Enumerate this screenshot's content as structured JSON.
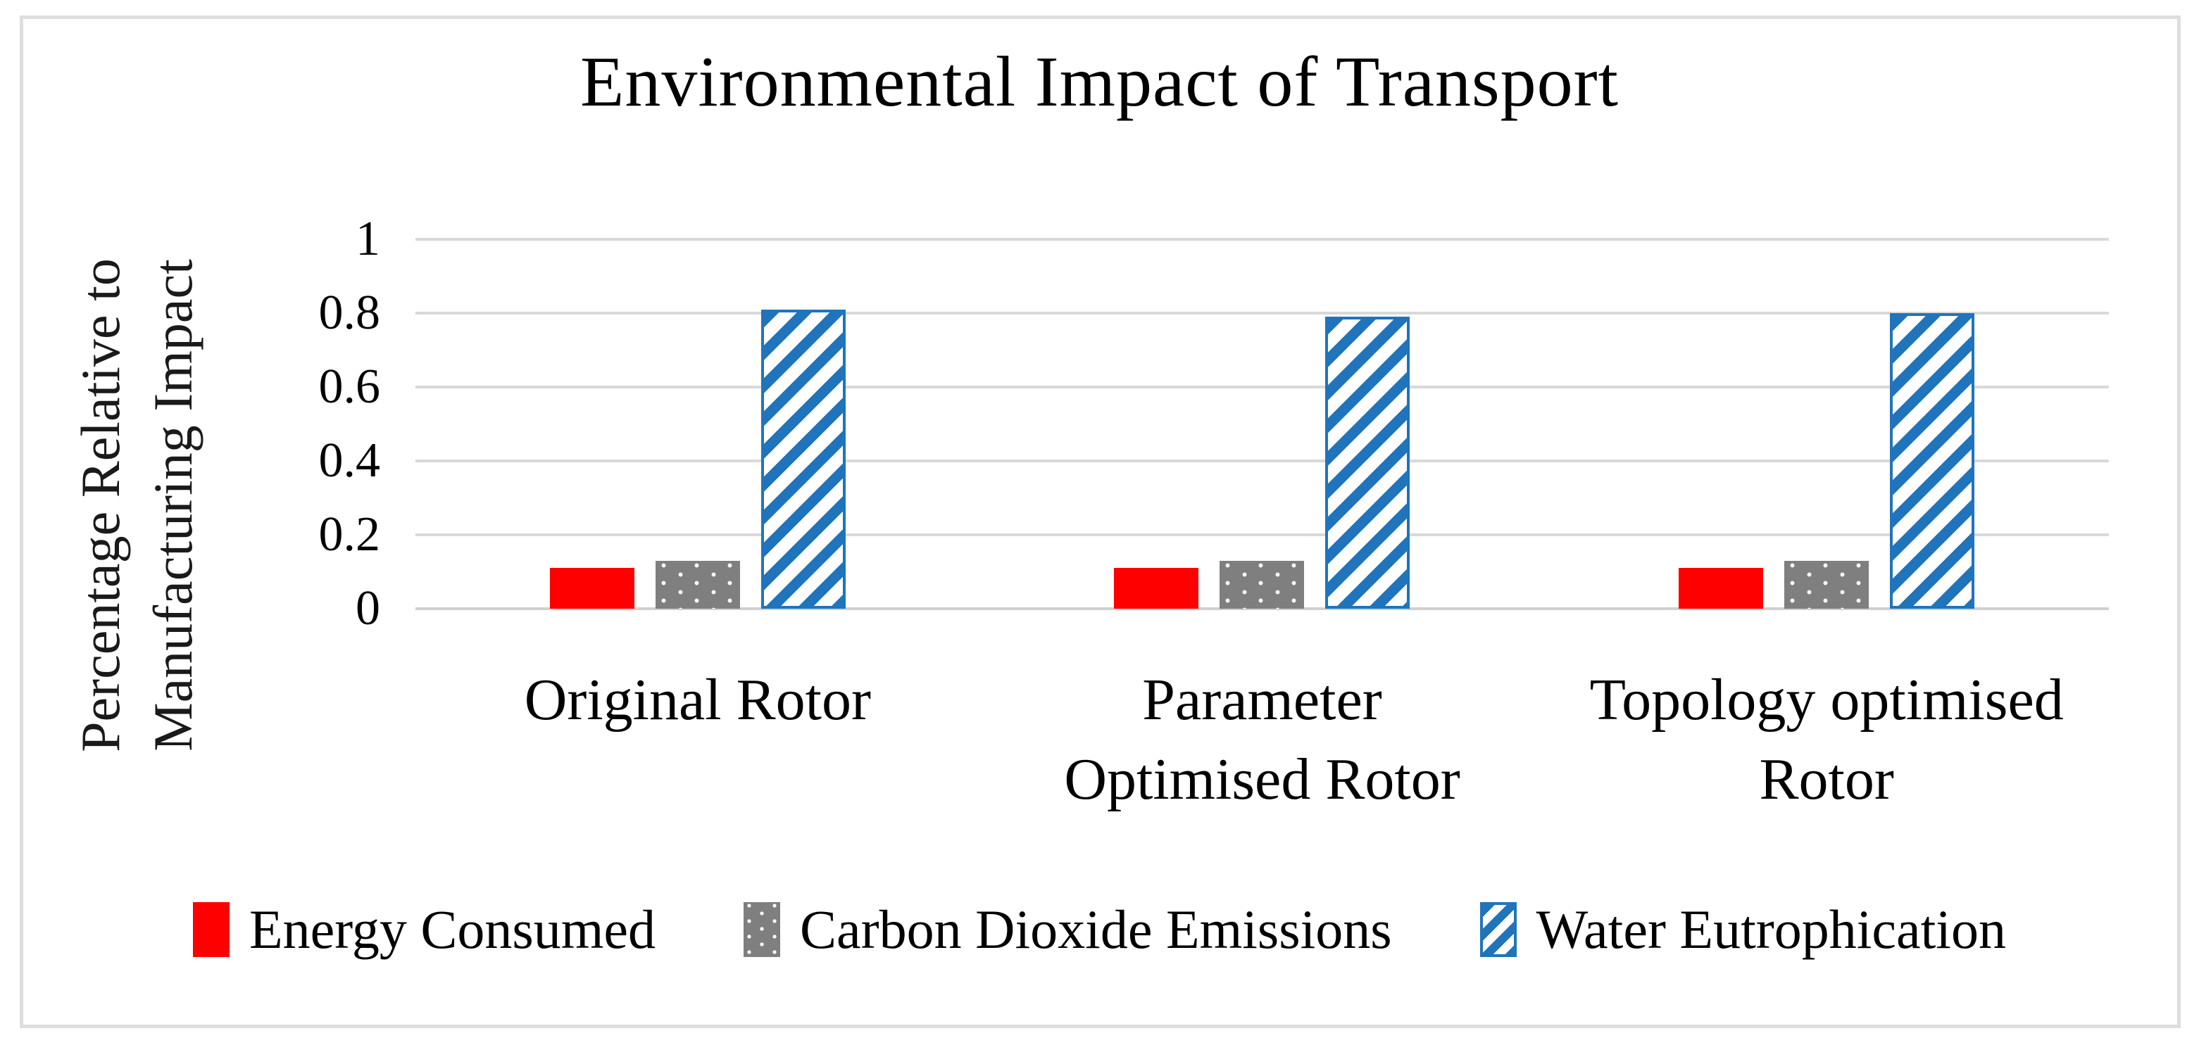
{
  "title": "Environmental Impact of Transport",
  "chart_data": {
    "type": "bar",
    "title": "Environmental Impact of Transport",
    "xlabel": "",
    "ylabel": "Percentage Relative to\nManufacturing Impact",
    "ylim": [
      0,
      1
    ],
    "yticks": [
      0,
      0.2,
      0.4,
      0.6,
      0.8,
      1
    ],
    "grid": true,
    "legend_position": "bottom",
    "categories": [
      "Original Rotor",
      "Parameter\nOptimised Rotor",
      "Topology optimised\nRotor"
    ],
    "series": [
      {
        "name": "Energy Consumed",
        "color": "#ff0000",
        "pattern": "solid",
        "values": [
          0.11,
          0.11,
          0.11
        ]
      },
      {
        "name": "Carbon Dioxide Emissions",
        "color": "#7f7f7f",
        "pattern": "dots",
        "values": [
          0.13,
          0.13,
          0.13
        ]
      },
      {
        "name": "Water Eutrophication",
        "color": "#1f74bc",
        "pattern": "diagonal-stripes",
        "values": [
          0.81,
          0.79,
          0.8
        ]
      }
    ]
  },
  "colors": {
    "gridline": "#d9d9d9",
    "frame_border": "#dedede",
    "text": "#000000",
    "background": "#ffffff"
  }
}
